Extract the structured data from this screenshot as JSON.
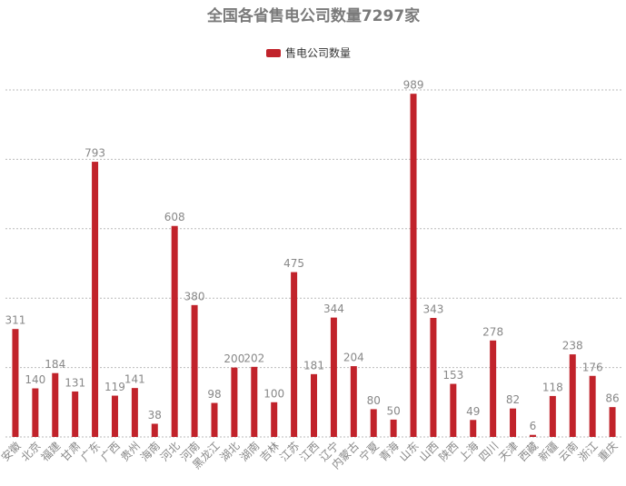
{
  "chart_data": {
    "type": "bar",
    "title": "全国各省售电公司数量7297家",
    "categories": [
      "安徽",
      "北京",
      "福建",
      "甘肃",
      "广东",
      "广西",
      "贵州",
      "海南",
      "河北",
      "河南",
      "黑龙江",
      "湖北",
      "湖南",
      "吉林",
      "江苏",
      "江西",
      "辽宁",
      "内蒙古",
      "宁夏",
      "青海",
      "山东",
      "山西",
      "陕西",
      "上海",
      "四川",
      "天津",
      "西藏",
      "新疆",
      "云南",
      "浙江",
      "重庆"
    ],
    "series": [
      {
        "name": "售电公司数量",
        "color": "#c1232b",
        "values": [
          311,
          140,
          184,
          131,
          793,
          119,
          141,
          38,
          608,
          380,
          98,
          200,
          202,
          100,
          475,
          181,
          344,
          204,
          80,
          50,
          989,
          343,
          153,
          49,
          278,
          82,
          6,
          118,
          238,
          176,
          86
        ]
      }
    ],
    "ylim": [
      0,
      1000
    ],
    "yticks": [
      0,
      200,
      400,
      600,
      800,
      1000
    ],
    "grid": true
  }
}
